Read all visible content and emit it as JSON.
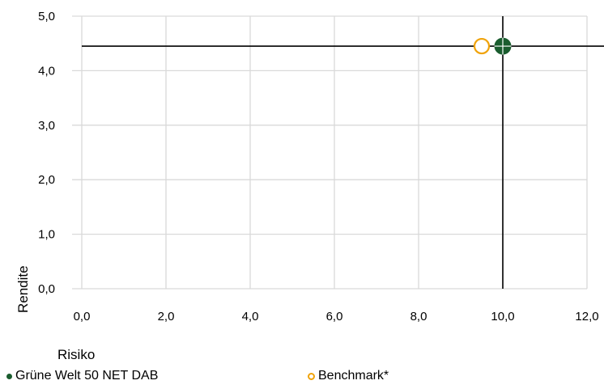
{
  "chart_data": {
    "type": "scatter",
    "title": "",
    "xlabel": "Risiko",
    "ylabel": "Rendite",
    "xlim": [
      0,
      12
    ],
    "ylim": [
      0,
      5
    ],
    "x_ticks": [
      "0,0",
      "2,0",
      "4,0",
      "6,0",
      "8,0",
      "10,0",
      "12,0"
    ],
    "y_ticks": [
      "0,0",
      "1,0",
      "2,0",
      "3,0",
      "4,0",
      "5,0"
    ],
    "grid": true,
    "legend_position": "bottom",
    "series": [
      {
        "name": "Grüne Welt 50 NET DAB",
        "points": [
          {
            "x": 10.0,
            "y": 4.45
          }
        ],
        "color": "#1a5c2e",
        "marker": "filled-circle"
      },
      {
        "name": "Benchmark*",
        "points": [
          {
            "x": 9.5,
            "y": 4.45
          }
        ],
        "color": "#f0a30a",
        "marker": "hollow-circle"
      }
    ],
    "crosshair": {
      "x": 10.0,
      "y": 4.45,
      "color": "#000000"
    }
  }
}
